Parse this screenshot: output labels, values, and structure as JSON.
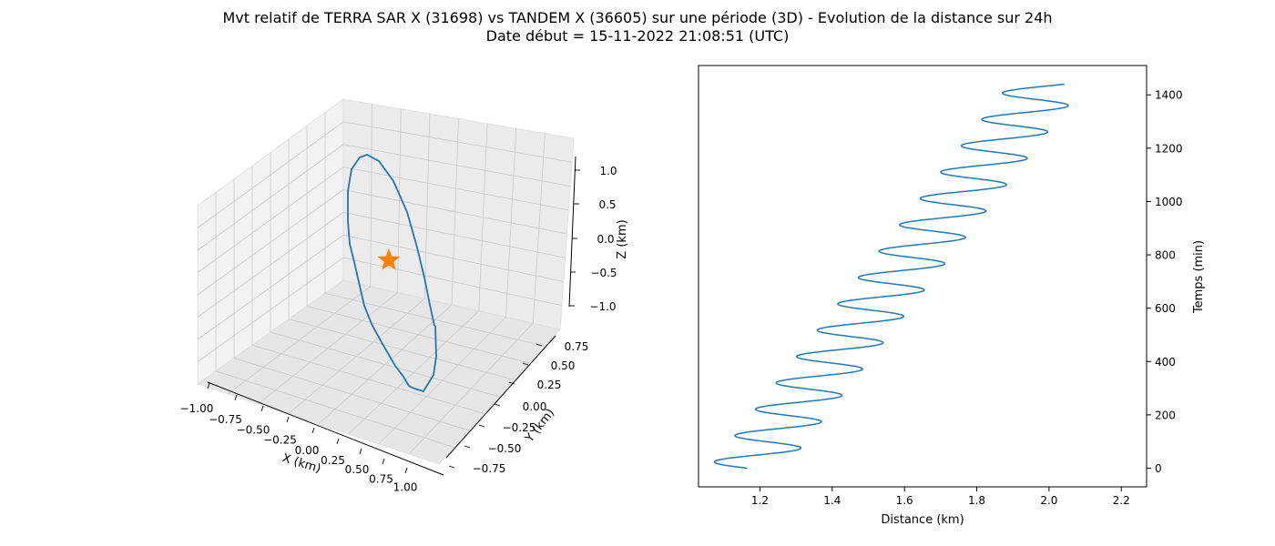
{
  "figure": {
    "title_line1": "Mvt relatif de TERRA SAR X (31698) vs TANDEM X (36605) sur une période (3D) - Evolution de la distance sur 24h",
    "title_line2": "Date début = 15-11-2022 21:08:51 (UTC)"
  },
  "chart_data": [
    {
      "type": "line3d",
      "xlabel": "X (km)",
      "ylabel": "Y (km)",
      "zlabel": "Z (km)",
      "xlim": [
        -1.0,
        1.0
      ],
      "ylim": [
        -0.75,
        0.75
      ],
      "zlim": [
        -1.0,
        1.0
      ],
      "xticks": [
        "−1.00",
        "−0.75",
        "−0.50",
        "−0.25",
        "0.00",
        "0.25",
        "0.50",
        "0.75",
        "1.00"
      ],
      "yticks": [
        "−0.75",
        "−0.50",
        "−0.25",
        "0.00",
        "0.25",
        "0.50",
        "0.75"
      ],
      "zticks": [
        "−1.0",
        "−0.5",
        "0.0",
        "0.5",
        "1.0"
      ],
      "grid": true,
      "series": [
        {
          "color": "#1f77b4",
          "marker": "line"
        },
        {
          "color": "#ff7f0e",
          "marker": "star",
          "x": [
            0.0
          ],
          "y": [
            0.0
          ],
          "z": [
            0.0
          ]
        }
      ]
    },
    {
      "type": "line",
      "xlabel": "Distance (km)",
      "ylabel": "Temps (min)",
      "xlim": [
        1.03,
        2.27
      ],
      "ylim": [
        -70,
        1510
      ],
      "xticks": [
        "1.2",
        "1.4",
        "1.6",
        "1.8",
        "2.0",
        "2.2"
      ],
      "yticks": [
        "0",
        "200",
        "400",
        "600",
        "800",
        "1000",
        "1200",
        "1400"
      ],
      "yaxis_position": "right",
      "grid": false,
      "series": [
        {
          "color": "#1f77b4",
          "x_start": 1.165,
          "x_end": 1.995,
          "t_start": 0,
          "t_end": 1440,
          "amplitude": 0.105,
          "period_min": 98.8,
          "note_start": 0,
          "note_end": 0
        }
      ]
    }
  ]
}
